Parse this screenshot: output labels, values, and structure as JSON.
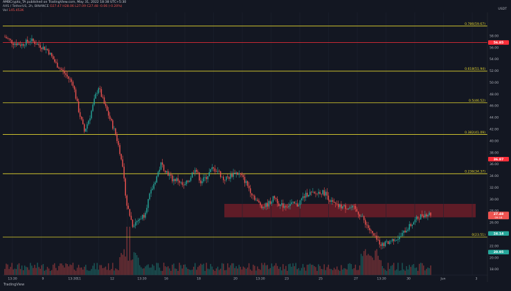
{
  "header": {
    "publisher": "AMBCrypto_TA published on TradingView.com, May 31, 2022 18:38 UTC+5:30",
    "symbol": "AXS / TetherUS, 2h, BINANCE",
    "ohlc": "O27.47 H28.06 L27.09 C27.48 -0.06 (-0.20%)",
    "vol_label": "Vol",
    "vol_value": "145.453K",
    "currency": "USDT"
  },
  "watermark": "TradingView",
  "colors": {
    "up": "#26a69a",
    "down": "#ef5350",
    "fib": "#e6d830",
    "resistance": "#ff2f3a",
    "zone": "#7a1f2a",
    "background": "#131722"
  },
  "chart_data": {
    "type": "candlestick",
    "title": "",
    "xlabel": "",
    "ylabel": "USDT",
    "ylim": [
      16,
      60
    ],
    "y_ticks": [
      "58.00",
      "56.00",
      "54.00",
      "52.00",
      "50.00",
      "48.00",
      "46.00",
      "44.00",
      "42.00",
      "40.00",
      "38.00",
      "36.00",
      "34.00",
      "32.00",
      "30.00",
      "28.00",
      "26.00",
      "24.00",
      "22.00",
      "20.00",
      "18.00"
    ],
    "x_ticks": [
      "13:30",
      "9",
      "13:30",
      "11",
      "12",
      "13:30",
      "16",
      "18",
      "20",
      "13:30",
      "23",
      "25",
      "27",
      "13:30",
      "30",
      "Jun",
      "3"
    ],
    "fib_levels": [
      {
        "label": "0.786(59.67)",
        "value": 59.67
      },
      {
        "label": "0.618(51.94)",
        "value": 51.94
      },
      {
        "label": "0.5(46.52)",
        "value": 46.52
      },
      {
        "label": "0.382(41.09)",
        "value": 41.09
      },
      {
        "label": "0.236(34.37)",
        "value": 34.37
      },
      {
        "label": "0(23.51)",
        "value": 23.51
      }
    ],
    "resistance_line": {
      "value": 56.85,
      "label": "56.85"
    },
    "price_badges": [
      {
        "label": "56.85",
        "value": 56.85,
        "color": "#ff2f3a"
      },
      {
        "label": "36.87",
        "value": 36.87,
        "color": "#ff2f3a"
      },
      {
        "label": "27.48",
        "value": 27.48,
        "color": "#ef5350",
        "sub": "09:18"
      },
      {
        "label": "24.14",
        "value": 24.14,
        "color": "#26a69a"
      },
      {
        "label": "20.95",
        "value": 20.95,
        "color": "#26a69a"
      }
    ],
    "zone": {
      "y_range": [
        26.9,
        29.2
      ]
    },
    "close_anchors": [
      [
        0,
        57.8
      ],
      [
        6,
        56.8
      ],
      [
        12,
        56.5
      ],
      [
        18,
        57.3
      ],
      [
        24,
        56.4
      ],
      [
        30,
        55.6
      ],
      [
        36,
        53.2
      ],
      [
        42,
        51.6
      ],
      [
        48,
        49.8
      ],
      [
        52,
        45.2
      ],
      [
        56,
        41.6
      ],
      [
        60,
        44.2
      ],
      [
        64,
        47.8
      ],
      [
        66,
        49.2
      ],
      [
        70,
        46.3
      ],
      [
        74,
        43.8
      ],
      [
        78,
        41.2
      ],
      [
        82,
        37.2
      ],
      [
        86,
        29.0
      ],
      [
        90,
        25.6
      ],
      [
        94,
        26.5
      ],
      [
        98,
        27.3
      ],
      [
        102,
        30.6
      ],
      [
        106,
        33.2
      ],
      [
        110,
        36.0
      ],
      [
        114,
        34.7
      ],
      [
        118,
        33.4
      ],
      [
        122,
        33.3
      ],
      [
        126,
        32.1
      ],
      [
        130,
        33.4
      ],
      [
        134,
        35.4
      ],
      [
        138,
        33.0
      ],
      [
        142,
        33.8
      ],
      [
        146,
        35.2
      ],
      [
        150,
        34.9
      ],
      [
        154,
        33.4
      ],
      [
        158,
        33.8
      ],
      [
        162,
        34.6
      ],
      [
        166,
        34.2
      ],
      [
        170,
        32.8
      ],
      [
        174,
        31.0
      ],
      [
        178,
        29.5
      ],
      [
        182,
        28.7
      ],
      [
        186,
        29.3
      ],
      [
        190,
        30.4
      ],
      [
        194,
        28.9
      ],
      [
        198,
        28.9
      ],
      [
        202,
        29.2
      ],
      [
        206,
        29.0
      ],
      [
        210,
        30.3
      ],
      [
        214,
        31.1
      ],
      [
        218,
        30.8
      ],
      [
        222,
        31.3
      ],
      [
        226,
        31.0
      ],
      [
        230,
        29.5
      ],
      [
        234,
        28.8
      ],
      [
        238,
        28.7
      ],
      [
        242,
        28.6
      ],
      [
        246,
        28.4
      ],
      [
        250,
        27.4
      ],
      [
        254,
        26.0
      ],
      [
        258,
        24.3
      ],
      [
        262,
        23.0
      ],
      [
        266,
        22.2
      ],
      [
        270,
        22.6
      ],
      [
        274,
        23.2
      ],
      [
        278,
        23.4
      ],
      [
        282,
        24.6
      ],
      [
        286,
        25.6
      ],
      [
        290,
        26.6
      ],
      [
        294,
        27.3
      ],
      [
        298,
        27.5
      ],
      [
        300,
        27.48
      ]
    ],
    "n_candles": 301
  }
}
